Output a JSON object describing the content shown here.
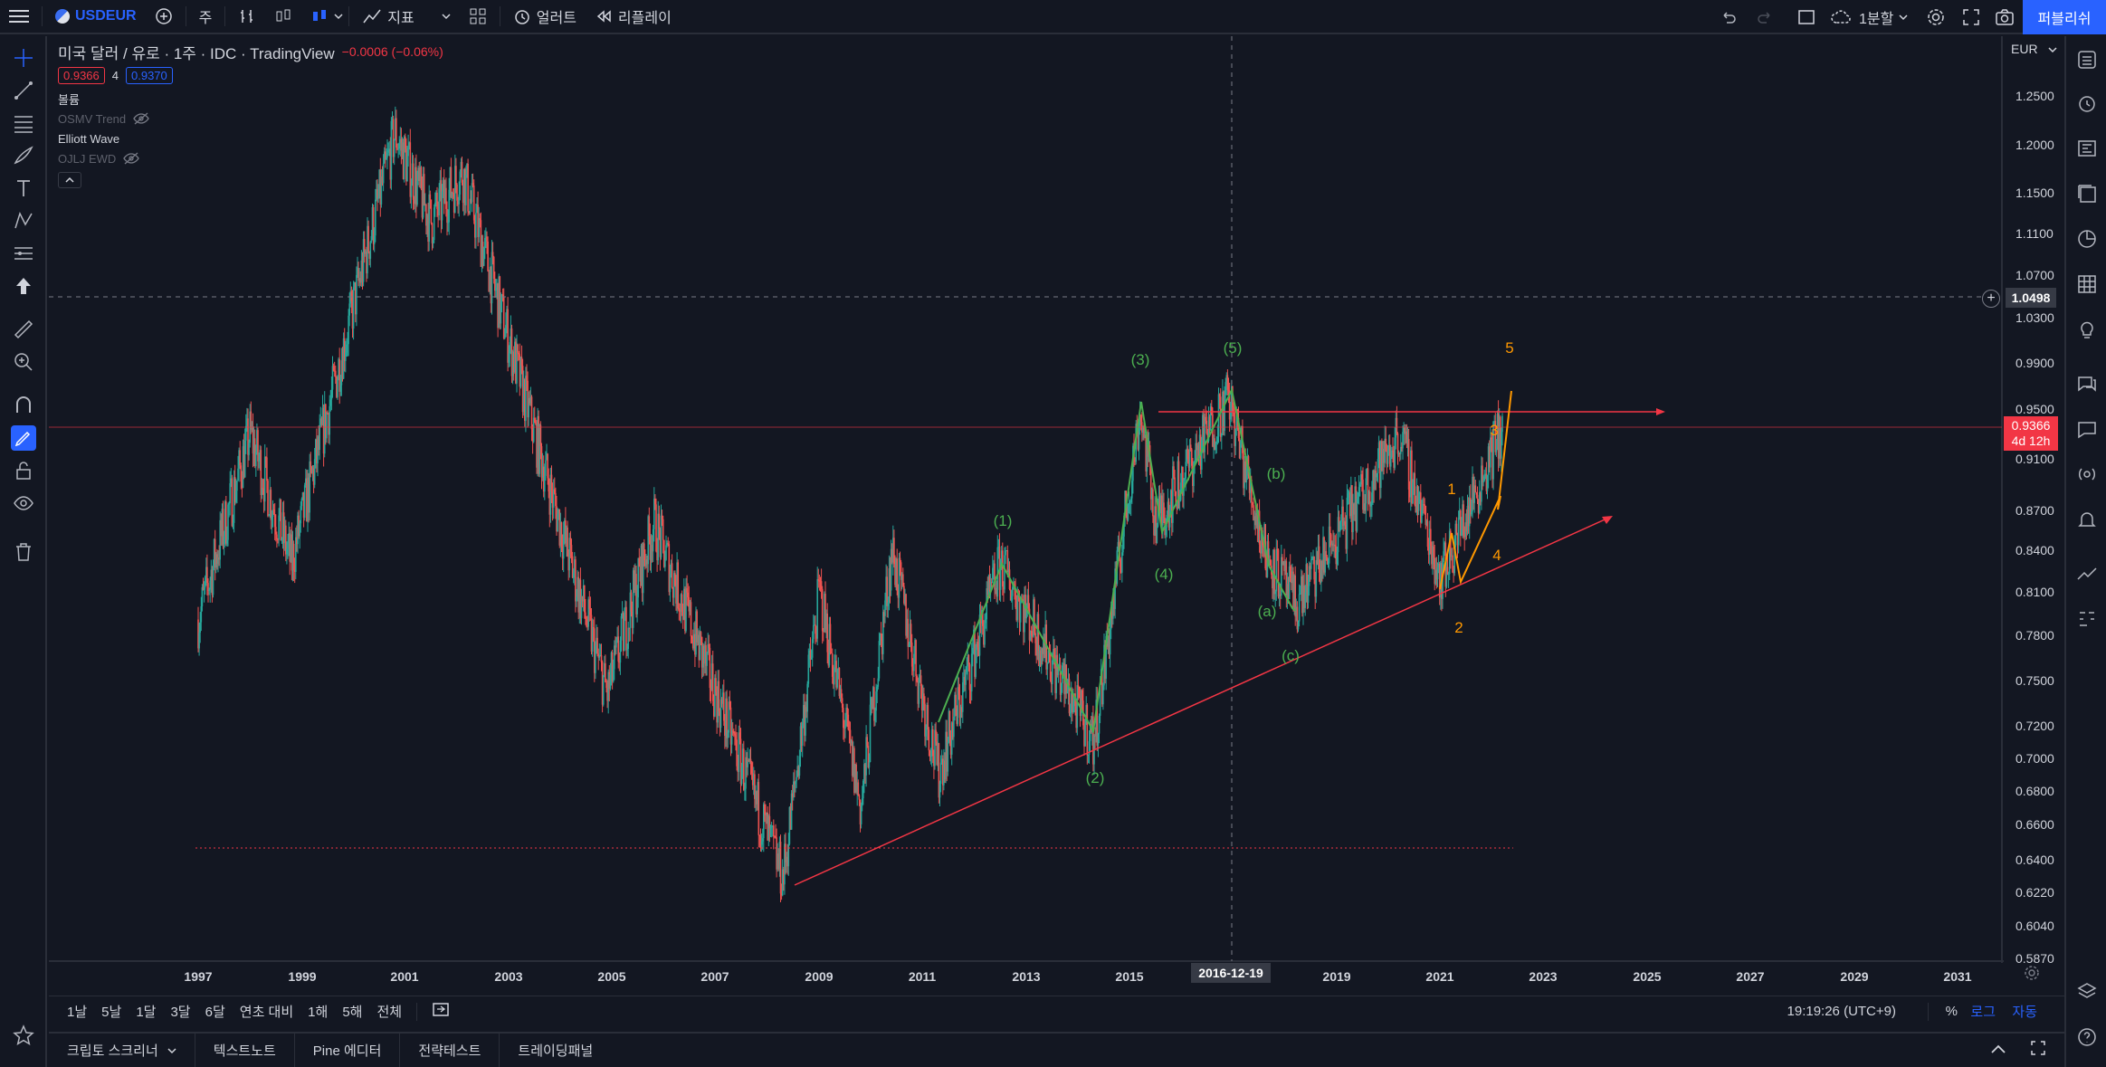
{
  "topbar": {
    "symbol": "USDEUR",
    "interval": "주",
    "indicators_label": "지표",
    "alert_label": "얼러트",
    "replay_label": "리플레이",
    "layout_label": "1분할",
    "publish_label": "퍼블리쉬"
  },
  "legend": {
    "title": "미국 달러 / 유로 · 1주 · IDC · TradingView",
    "change": "−0.0006 (−0.06%)",
    "bid": "0.9366",
    "spread": "4",
    "ask": "0.9370",
    "indicators": [
      {
        "name": "볼륨",
        "hidden": false
      },
      {
        "name": "OSMV Trend",
        "hidden": true
      },
      {
        "name": "Elliott Wave",
        "hidden": false
      },
      {
        "name": "OJLJ EWD",
        "hidden": true
      }
    ]
  },
  "price_axis": {
    "currency": "EUR",
    "ticks": [
      "1.2500",
      "1.2000",
      "1.1500",
      "1.1100",
      "1.0700",
      "1.0300",
      "0.9900",
      "0.9500",
      "0.9100",
      "0.8700",
      "0.8400",
      "0.8100",
      "0.7800",
      "0.7500",
      "0.7200",
      "0.7000",
      "0.6800",
      "0.6600",
      "0.6400",
      "0.6220",
      "0.6040",
      "0.5870"
    ],
    "crosshair_price": "1.0498",
    "last_price": "0.9366",
    "last_countdown": "4d 12h"
  },
  "time_axis": {
    "ticks": [
      "1997",
      "1999",
      "2001",
      "2003",
      "2005",
      "2007",
      "2009",
      "2011",
      "2013",
      "2015",
      "2019",
      "2021",
      "2023",
      "2025",
      "2027",
      "2029",
      "2031"
    ],
    "crosshair_date": "2016-12-19"
  },
  "waves": {
    "green": [
      "(1)",
      "(2)",
      "(3)",
      "(4)",
      "(5)",
      "(a)",
      "(b)",
      "(c)"
    ],
    "orange": [
      "1",
      "2",
      "3",
      "4",
      "5"
    ]
  },
  "range_bar": {
    "buttons": [
      "1날",
      "5날",
      "1달",
      "3달",
      "6달",
      "연초 대비",
      "1해",
      "5해",
      "전체"
    ],
    "clock": "19:19:26 (UTC+9)",
    "percent": "%",
    "log": "로그",
    "auto": "자동"
  },
  "panels": [
    "크립토 스크리너",
    "텍스트노트",
    "Pine 에디터",
    "전략테스트",
    "트레이딩패널"
  ],
  "colors": {
    "background": "#131722",
    "up": "#26a69a",
    "down": "#ef5350",
    "accent": "#2962ff",
    "wave_green": "#4caf50",
    "wave_orange": "#ff9800",
    "trendline": "#f23645"
  },
  "chart_data": {
    "type": "candlestick",
    "symbol": "USDEUR",
    "interval": "1주",
    "price_scale": "log",
    "approx_path": [
      {
        "x": "1997",
        "y": 0.79
      },
      {
        "x": "1998",
        "y": 0.93
      },
      {
        "x": "1998.8",
        "y": 0.83
      },
      {
        "x": "2000.8",
        "y": 1.21
      },
      {
        "x": "2001.5",
        "y": 1.12
      },
      {
        "x": "2002.1",
        "y": 1.17
      },
      {
        "x": "2004.9",
        "y": 0.74
      },
      {
        "x": "2005.8",
        "y": 0.86
      },
      {
        "x": "2008.3",
        "y": 0.63
      },
      {
        "x": "2009",
        "y": 0.81
      },
      {
        "x": "2009.8",
        "y": 0.67
      },
      {
        "x": "2010.4",
        "y": 0.84
      },
      {
        "x": "2011.3",
        "y": 0.69
      },
      {
        "x": "2012.5",
        "y": 0.83
      },
      {
        "x": "2014.3",
        "y": 0.71
      },
      {
        "x": "2015.2",
        "y": 0.95
      },
      {
        "x": "2015.5",
        "y": 0.86
      },
      {
        "x": "2016.9",
        "y": 0.96
      },
      {
        "x": "2017.6",
        "y": 0.84
      },
      {
        "x": "2018.2",
        "y": 0.8
      },
      {
        "x": "2020.2",
        "y": 0.93
      },
      {
        "x": "2021.0",
        "y": 0.82
      },
      {
        "x": "2022.2",
        "y": 0.9366
      }
    ]
  }
}
